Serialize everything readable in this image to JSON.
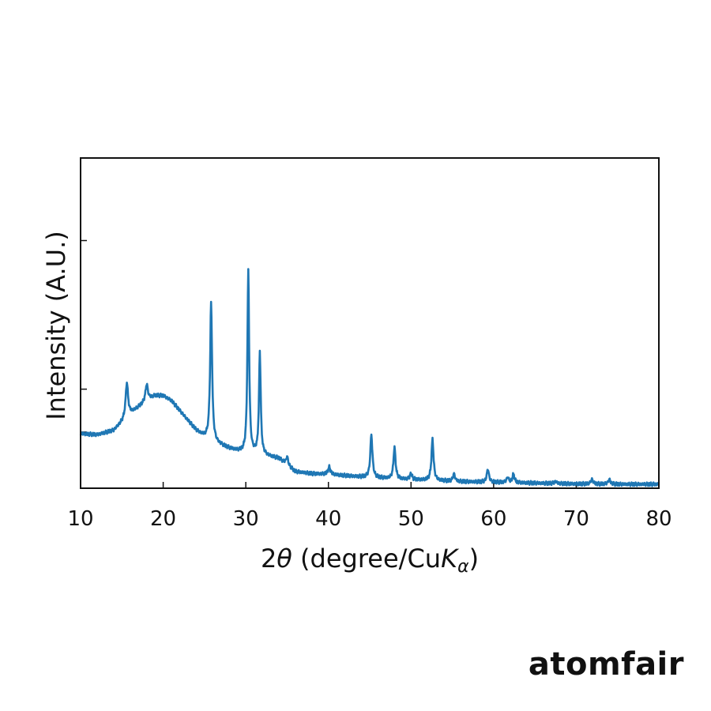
{
  "chart_data": {
    "type": "line",
    "title": "",
    "xlabel": {
      "prefix": "2",
      "theta": "θ",
      "main": " (degree/Cu",
      "k": "K",
      "alpha": "α",
      "suffix": ")"
    },
    "ylabel": "Intensity (A.U.)",
    "xlim": [
      10,
      80
    ],
    "ylim": [
      0,
      1
    ],
    "xticks": [
      10,
      20,
      30,
      40,
      50,
      60,
      70,
      80
    ],
    "yticks": [
      0.17,
      0.3,
      0.75
    ],
    "ytick_labels": false,
    "grid": false,
    "legend": "none",
    "series": [
      {
        "color": "#1f77b4",
        "baseline": [
          [
            10,
            0.165
          ],
          [
            12,
            0.162
          ],
          [
            14,
            0.175
          ],
          [
            15,
            0.2
          ],
          [
            16,
            0.225
          ],
          [
            17,
            0.245
          ],
          [
            18,
            0.265
          ],
          [
            19,
            0.28
          ],
          [
            20,
            0.28
          ],
          [
            21,
            0.265
          ],
          [
            22,
            0.235
          ],
          [
            23,
            0.205
          ],
          [
            24,
            0.175
          ],
          [
            25,
            0.155
          ],
          [
            26,
            0.14
          ],
          [
            27,
            0.13
          ],
          [
            28,
            0.12
          ],
          [
            29,
            0.112
          ],
          [
            30,
            0.105
          ],
          [
            32,
            0.1
          ],
          [
            34,
            0.09
          ],
          [
            36,
            0.05
          ],
          [
            38,
            0.044
          ],
          [
            40,
            0.042
          ],
          [
            42,
            0.038
          ],
          [
            44,
            0.034
          ],
          [
            46,
            0.031
          ],
          [
            48,
            0.028
          ],
          [
            50,
            0.026
          ],
          [
            52,
            0.024
          ],
          [
            54,
            0.022
          ],
          [
            56,
            0.02
          ],
          [
            58,
            0.019
          ],
          [
            60,
            0.018
          ],
          [
            62,
            0.017
          ],
          [
            64,
            0.016
          ],
          [
            66,
            0.015
          ],
          [
            70,
            0.013
          ],
          [
            74,
            0.012
          ],
          [
            80,
            0.012
          ]
        ],
        "peaks": [
          {
            "x": 15.6,
            "height": 0.105,
            "width": 0.35
          },
          {
            "x": 18.0,
            "height": 0.05,
            "width": 0.35
          },
          {
            "x": 25.8,
            "height": 0.42,
            "width": 0.28
          },
          {
            "x": 30.3,
            "height": 0.555,
            "width": 0.25
          },
          {
            "x": 31.7,
            "height": 0.31,
            "width": 0.25
          },
          {
            "x": 35.0,
            "height": 0.025,
            "width": 0.3
          },
          {
            "x": 40.1,
            "height": 0.022,
            "width": 0.35
          },
          {
            "x": 45.2,
            "height": 0.13,
            "width": 0.3
          },
          {
            "x": 48.0,
            "height": 0.095,
            "width": 0.3
          },
          {
            "x": 50.0,
            "height": 0.018,
            "width": 0.3
          },
          {
            "x": 52.6,
            "height": 0.125,
            "width": 0.3
          },
          {
            "x": 55.2,
            "height": 0.022,
            "width": 0.3
          },
          {
            "x": 59.3,
            "height": 0.04,
            "width": 0.3
          },
          {
            "x": 61.7,
            "height": 0.016,
            "width": 0.3
          },
          {
            "x": 62.4,
            "height": 0.025,
            "width": 0.3
          },
          {
            "x": 67.5,
            "height": 0.006,
            "width": 0.35
          },
          {
            "x": 71.9,
            "height": 0.014,
            "width": 0.35
          },
          {
            "x": 74.0,
            "height": 0.014,
            "width": 0.35
          }
        ]
      }
    ]
  },
  "brand": {
    "logo_text": "atomfair"
  }
}
